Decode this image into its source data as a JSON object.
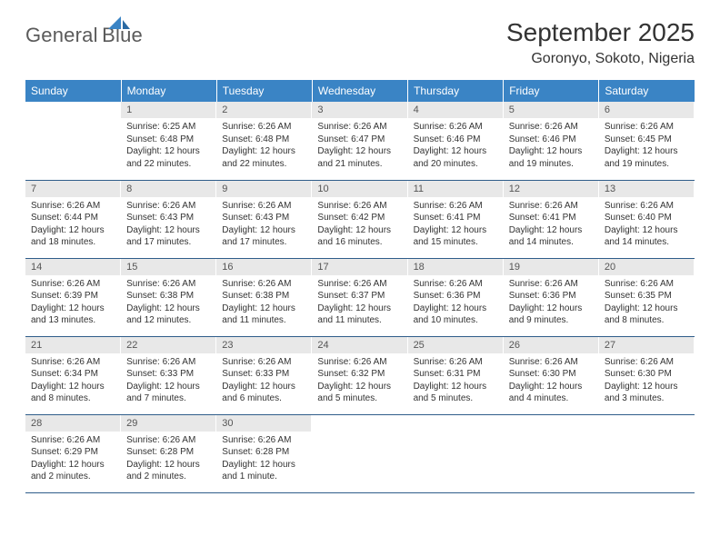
{
  "logo": {
    "line1": "General",
    "line2": "Blue"
  },
  "title": "September 2025",
  "location": "Goronyo, Sokoto, Nigeria",
  "header_color": "#3a84c5",
  "weekdays": [
    "Sunday",
    "Monday",
    "Tuesday",
    "Wednesday",
    "Thursday",
    "Friday",
    "Saturday"
  ],
  "weeks": [
    [
      null,
      {
        "n": "1",
        "sr": "Sunrise: 6:25 AM",
        "ss": "Sunset: 6:48 PM",
        "d1": "Daylight: 12 hours",
        "d2": "and 22 minutes."
      },
      {
        "n": "2",
        "sr": "Sunrise: 6:26 AM",
        "ss": "Sunset: 6:48 PM",
        "d1": "Daylight: 12 hours",
        "d2": "and 22 minutes."
      },
      {
        "n": "3",
        "sr": "Sunrise: 6:26 AM",
        "ss": "Sunset: 6:47 PM",
        "d1": "Daylight: 12 hours",
        "d2": "and 21 minutes."
      },
      {
        "n": "4",
        "sr": "Sunrise: 6:26 AM",
        "ss": "Sunset: 6:46 PM",
        "d1": "Daylight: 12 hours",
        "d2": "and 20 minutes."
      },
      {
        "n": "5",
        "sr": "Sunrise: 6:26 AM",
        "ss": "Sunset: 6:46 PM",
        "d1": "Daylight: 12 hours",
        "d2": "and 19 minutes."
      },
      {
        "n": "6",
        "sr": "Sunrise: 6:26 AM",
        "ss": "Sunset: 6:45 PM",
        "d1": "Daylight: 12 hours",
        "d2": "and 19 minutes."
      }
    ],
    [
      {
        "n": "7",
        "sr": "Sunrise: 6:26 AM",
        "ss": "Sunset: 6:44 PM",
        "d1": "Daylight: 12 hours",
        "d2": "and 18 minutes."
      },
      {
        "n": "8",
        "sr": "Sunrise: 6:26 AM",
        "ss": "Sunset: 6:43 PM",
        "d1": "Daylight: 12 hours",
        "d2": "and 17 minutes."
      },
      {
        "n": "9",
        "sr": "Sunrise: 6:26 AM",
        "ss": "Sunset: 6:43 PM",
        "d1": "Daylight: 12 hours",
        "d2": "and 17 minutes."
      },
      {
        "n": "10",
        "sr": "Sunrise: 6:26 AM",
        "ss": "Sunset: 6:42 PM",
        "d1": "Daylight: 12 hours",
        "d2": "and 16 minutes."
      },
      {
        "n": "11",
        "sr": "Sunrise: 6:26 AM",
        "ss": "Sunset: 6:41 PM",
        "d1": "Daylight: 12 hours",
        "d2": "and 15 minutes."
      },
      {
        "n": "12",
        "sr": "Sunrise: 6:26 AM",
        "ss": "Sunset: 6:41 PM",
        "d1": "Daylight: 12 hours",
        "d2": "and 14 minutes."
      },
      {
        "n": "13",
        "sr": "Sunrise: 6:26 AM",
        "ss": "Sunset: 6:40 PM",
        "d1": "Daylight: 12 hours",
        "d2": "and 14 minutes."
      }
    ],
    [
      {
        "n": "14",
        "sr": "Sunrise: 6:26 AM",
        "ss": "Sunset: 6:39 PM",
        "d1": "Daylight: 12 hours",
        "d2": "and 13 minutes."
      },
      {
        "n": "15",
        "sr": "Sunrise: 6:26 AM",
        "ss": "Sunset: 6:38 PM",
        "d1": "Daylight: 12 hours",
        "d2": "and 12 minutes."
      },
      {
        "n": "16",
        "sr": "Sunrise: 6:26 AM",
        "ss": "Sunset: 6:38 PM",
        "d1": "Daylight: 12 hours",
        "d2": "and 11 minutes."
      },
      {
        "n": "17",
        "sr": "Sunrise: 6:26 AM",
        "ss": "Sunset: 6:37 PM",
        "d1": "Daylight: 12 hours",
        "d2": "and 11 minutes."
      },
      {
        "n": "18",
        "sr": "Sunrise: 6:26 AM",
        "ss": "Sunset: 6:36 PM",
        "d1": "Daylight: 12 hours",
        "d2": "and 10 minutes."
      },
      {
        "n": "19",
        "sr": "Sunrise: 6:26 AM",
        "ss": "Sunset: 6:36 PM",
        "d1": "Daylight: 12 hours",
        "d2": "and 9 minutes."
      },
      {
        "n": "20",
        "sr": "Sunrise: 6:26 AM",
        "ss": "Sunset: 6:35 PM",
        "d1": "Daylight: 12 hours",
        "d2": "and 8 minutes."
      }
    ],
    [
      {
        "n": "21",
        "sr": "Sunrise: 6:26 AM",
        "ss": "Sunset: 6:34 PM",
        "d1": "Daylight: 12 hours",
        "d2": "and 8 minutes."
      },
      {
        "n": "22",
        "sr": "Sunrise: 6:26 AM",
        "ss": "Sunset: 6:33 PM",
        "d1": "Daylight: 12 hours",
        "d2": "and 7 minutes."
      },
      {
        "n": "23",
        "sr": "Sunrise: 6:26 AM",
        "ss": "Sunset: 6:33 PM",
        "d1": "Daylight: 12 hours",
        "d2": "and 6 minutes."
      },
      {
        "n": "24",
        "sr": "Sunrise: 6:26 AM",
        "ss": "Sunset: 6:32 PM",
        "d1": "Daylight: 12 hours",
        "d2": "and 5 minutes."
      },
      {
        "n": "25",
        "sr": "Sunrise: 6:26 AM",
        "ss": "Sunset: 6:31 PM",
        "d1": "Daylight: 12 hours",
        "d2": "and 5 minutes."
      },
      {
        "n": "26",
        "sr": "Sunrise: 6:26 AM",
        "ss": "Sunset: 6:30 PM",
        "d1": "Daylight: 12 hours",
        "d2": "and 4 minutes."
      },
      {
        "n": "27",
        "sr": "Sunrise: 6:26 AM",
        "ss": "Sunset: 6:30 PM",
        "d1": "Daylight: 12 hours",
        "d2": "and 3 minutes."
      }
    ],
    [
      {
        "n": "28",
        "sr": "Sunrise: 6:26 AM",
        "ss": "Sunset: 6:29 PM",
        "d1": "Daylight: 12 hours",
        "d2": "and 2 minutes."
      },
      {
        "n": "29",
        "sr": "Sunrise: 6:26 AM",
        "ss": "Sunset: 6:28 PM",
        "d1": "Daylight: 12 hours",
        "d2": "and 2 minutes."
      },
      {
        "n": "30",
        "sr": "Sunrise: 6:26 AM",
        "ss": "Sunset: 6:28 PM",
        "d1": "Daylight: 12 hours",
        "d2": "and 1 minute."
      },
      null,
      null,
      null,
      null
    ]
  ]
}
